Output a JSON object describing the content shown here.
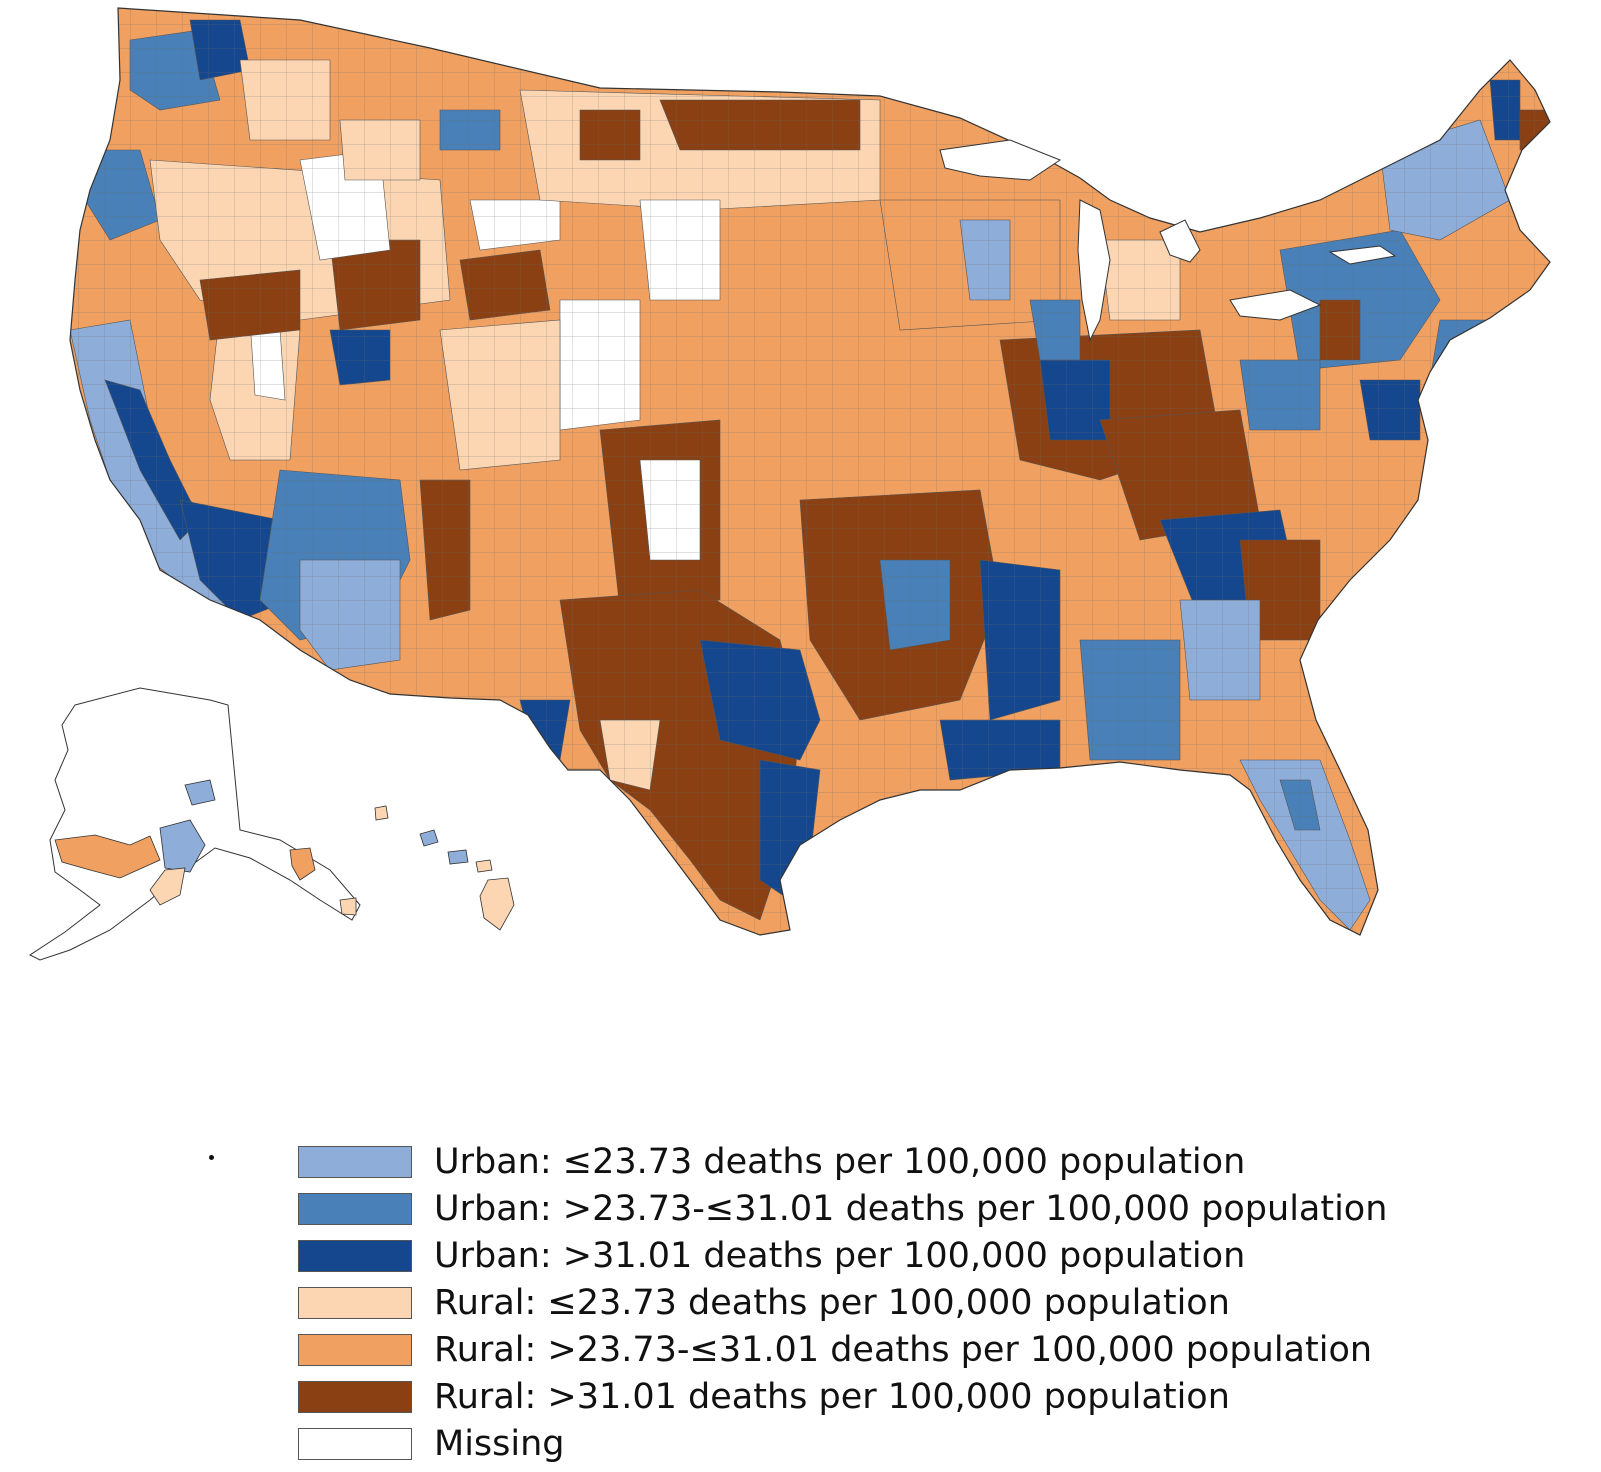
{
  "legend": {
    "items": [
      {
        "label": "Urban: ≤23.73 deaths per 100,000 population",
        "color": "#8eadd9"
      },
      {
        "label": "Urban: >23.73-≤31.01 deaths per 100,000 population",
        "color": "#4a80b8"
      },
      {
        "label": "Urban: >31.01 deaths per 100,000 population",
        "color": "#15478f"
      },
      {
        "label": "Rural: ≤23.73 deaths per 100,000 population",
        "color": "#fcd6b3"
      },
      {
        "label": "Rural: >23.73-≤31.01 deaths per 100,000 population",
        "color": "#f0a060"
      },
      {
        "label": "Rural: >31.01 deaths per 100,000 population",
        "color": "#8a4013"
      },
      {
        "label": "Missing",
        "color": "#ffffff"
      }
    ]
  }
}
